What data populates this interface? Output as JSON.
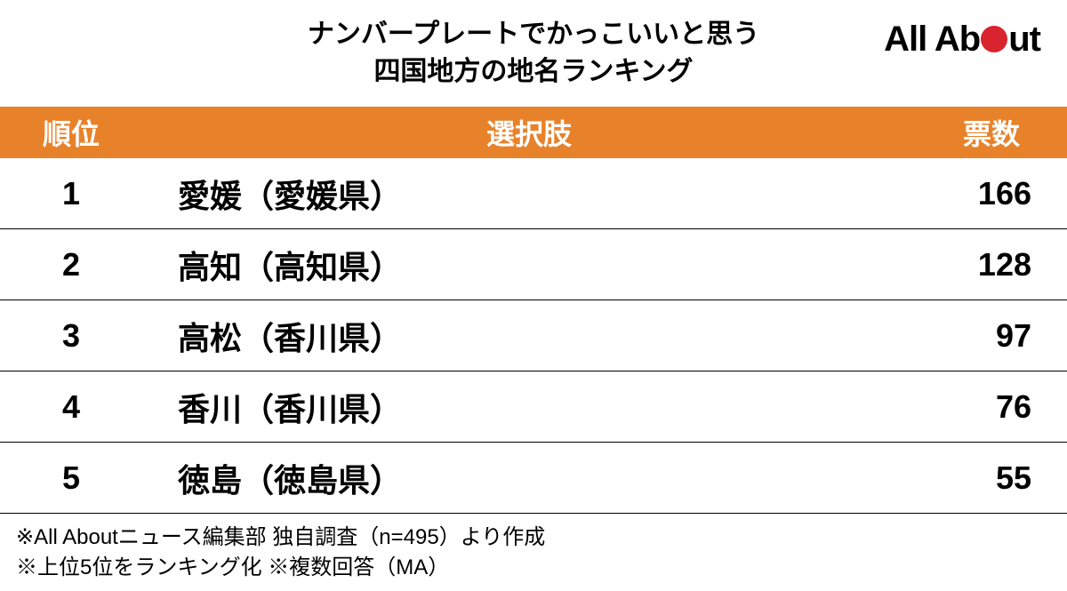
{
  "title": {
    "line1": "ナンバープレートでかっこいいと思う",
    "line2": "四国地方の地名ランキング"
  },
  "logo": {
    "part1": "All Ab",
    "part2": "ut",
    "dot_color": "#d9232e"
  },
  "table": {
    "type": "table",
    "header_bg_color": "#e8822a",
    "header_text_color": "#ffffff",
    "header_fontsize": 32,
    "row_fontsize": 36,
    "row_text_color": "#000000",
    "border_color": "#000000",
    "columns": [
      {
        "key": "rank",
        "label": "順位",
        "width": 160,
        "align": "center"
      },
      {
        "key": "choice",
        "label": "選択肢",
        "width": "flex",
        "align": "left"
      },
      {
        "key": "votes",
        "label": "票数",
        "width": 170,
        "align": "right"
      }
    ],
    "rows": [
      {
        "rank": "1",
        "choice": "愛媛（愛媛県）",
        "votes": "166"
      },
      {
        "rank": "2",
        "choice": "高知（高知県）",
        "votes": "128"
      },
      {
        "rank": "3",
        "choice": "高松（香川県）",
        "votes": "97"
      },
      {
        "rank": "4",
        "choice": "香川（香川県）",
        "votes": "76"
      },
      {
        "rank": "5",
        "choice": "徳島（徳島県）",
        "votes": "55"
      }
    ]
  },
  "footnotes": {
    "line1": "※All Aboutニュース編集部 独自調査（n=495）より作成",
    "line2": "※上位5位をランキング化  ※複数回答（MA）"
  },
  "background_color": "#ffffff"
}
